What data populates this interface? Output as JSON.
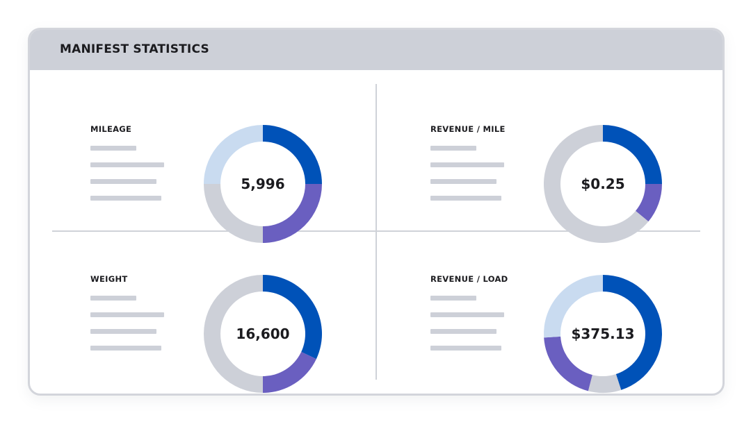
{
  "title": "MANIFEST STATISTICS",
  "colors": {
    "primary": "#0052b8",
    "secondary": "#6a5fc0",
    "light": "#c9dbf0",
    "neutral": "#cdd0d8"
  },
  "chart_data": [
    {
      "type": "pie",
      "label": "MILEAGE",
      "value_text": "5,996",
      "slices": [
        {
          "value": 0.25,
          "color": "#0052b8"
        },
        {
          "value": 0.25,
          "color": "#6a5fc0"
        },
        {
          "value": 0.25,
          "color": "#cdd0d8"
        },
        {
          "value": 0.25,
          "color": "#c9dbf0"
        }
      ]
    },
    {
      "type": "pie",
      "label": "REVENUE / MILE",
      "value_text": "$0.25",
      "slices": [
        {
          "value": 0.25,
          "color": "#0052b8"
        },
        {
          "value": 0.11,
          "color": "#6a5fc0"
        },
        {
          "value": 0.64,
          "color": "#cdd0d8"
        }
      ]
    },
    {
      "type": "pie",
      "label": "WEIGHT",
      "value_text": "16,600",
      "slices": [
        {
          "value": 0.32,
          "color": "#0052b8"
        },
        {
          "value": 0.18,
          "color": "#6a5fc0"
        },
        {
          "value": 0.5,
          "color": "#cdd0d8"
        }
      ]
    },
    {
      "type": "pie",
      "label": "REVENUE / LOAD",
      "value_text": "$375.13",
      "slices": [
        {
          "value": 0.45,
          "color": "#0052b8"
        },
        {
          "value": 0.09,
          "color": "#cdd0d8"
        },
        {
          "value": 0.2,
          "color": "#6a5fc0"
        },
        {
          "value": 0.26,
          "color": "#c9dbf0"
        }
      ]
    }
  ]
}
